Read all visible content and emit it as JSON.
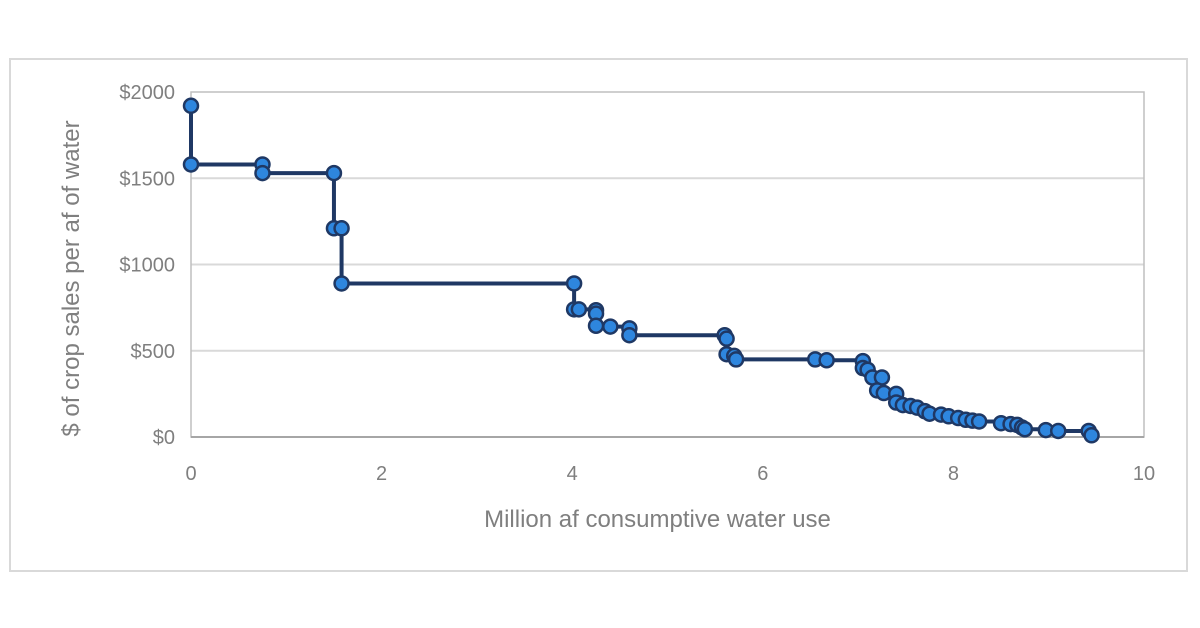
{
  "chart_data": {
    "type": "line",
    "title": "",
    "xlabel": "Million af consumptive water use",
    "ylabel": "$ of crop sales per af of water",
    "xlim": [
      0,
      10
    ],
    "ylim": [
      0,
      2000
    ],
    "x_ticks": [
      {
        "value": 0,
        "label": "0"
      },
      {
        "value": 2,
        "label": "2"
      },
      {
        "value": 4,
        "label": "4"
      },
      {
        "value": 6,
        "label": "6"
      },
      {
        "value": 8,
        "label": "8"
      },
      {
        "value": 10,
        "label": "10"
      }
    ],
    "y_ticks": [
      {
        "value": 0,
        "label": "$0"
      },
      {
        "value": 500,
        "label": "$500"
      },
      {
        "value": 1000,
        "label": "$1000"
      },
      {
        "value": 1500,
        "label": "$1500"
      },
      {
        "value": 2000,
        "label": "$2000"
      }
    ],
    "grid": "horizontal",
    "legend": "none",
    "colors": {
      "line": "#1f3864",
      "marker_fill": "#2e86de",
      "marker_edge": "#1f3864",
      "grid": "#d9d9d9",
      "frame": "#bfbfbf"
    },
    "series": [
      {
        "name": "Crop sales per af",
        "step": true,
        "points": [
          [
            0.0,
            1920
          ],
          [
            0.0,
            1580
          ],
          [
            0.75,
            1580
          ],
          [
            0.75,
            1530
          ],
          [
            1.5,
            1530
          ],
          [
            1.5,
            1210
          ],
          [
            1.58,
            1210
          ],
          [
            1.58,
            890
          ],
          [
            4.02,
            890
          ],
          [
            4.02,
            740
          ],
          [
            4.07,
            740
          ],
          [
            4.25,
            735
          ],
          [
            4.25,
            715
          ],
          [
            4.25,
            645
          ],
          [
            4.4,
            640
          ],
          [
            4.6,
            630
          ],
          [
            4.6,
            590
          ],
          [
            5.6,
            590
          ],
          [
            5.62,
            570
          ],
          [
            5.62,
            480
          ],
          [
            5.7,
            470
          ],
          [
            5.72,
            450
          ],
          [
            6.55,
            450
          ],
          [
            6.67,
            445
          ],
          [
            7.05,
            440
          ],
          [
            7.05,
            400
          ],
          [
            7.1,
            390
          ],
          [
            7.15,
            345
          ],
          [
            7.25,
            345
          ],
          [
            7.2,
            270
          ],
          [
            7.27,
            255
          ],
          [
            7.4,
            250
          ],
          [
            7.4,
            200
          ],
          [
            7.47,
            185
          ],
          [
            7.55,
            180
          ],
          [
            7.62,
            170
          ],
          [
            7.7,
            150
          ],
          [
            7.75,
            135
          ],
          [
            7.87,
            130
          ],
          [
            7.95,
            120
          ],
          [
            8.05,
            110
          ],
          [
            8.13,
            100
          ],
          [
            8.2,
            95
          ],
          [
            8.27,
            90
          ],
          [
            8.5,
            80
          ],
          [
            8.6,
            75
          ],
          [
            8.67,
            70
          ],
          [
            8.72,
            55
          ],
          [
            8.75,
            45
          ],
          [
            8.97,
            40
          ],
          [
            9.1,
            35
          ],
          [
            9.42,
            35
          ],
          [
            9.45,
            10
          ]
        ]
      }
    ]
  }
}
